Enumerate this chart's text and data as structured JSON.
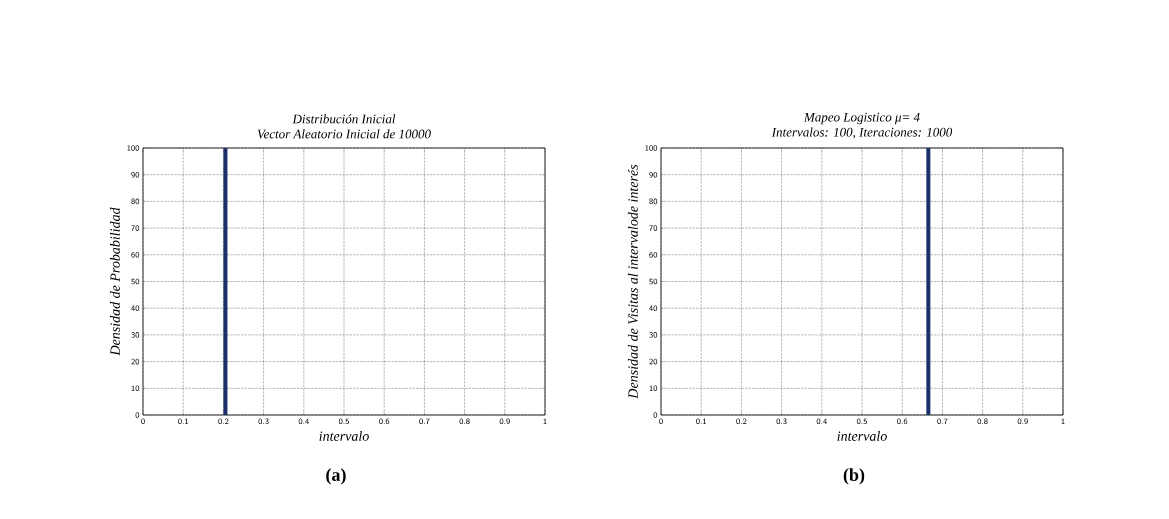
{
  "chart_data": [
    {
      "type": "histogram",
      "title": "Distribución Inicial",
      "subtitle": "Vector Aleatorio Inicial de 10000",
      "xlabel": "intervalo",
      "ylabel": "Densidad de Probabilidad",
      "bins": [
        0.2,
        0.21
      ],
      "values": [
        100
      ],
      "color": "#1b2f6b",
      "xlim": [
        0,
        1
      ],
      "ylim": [
        0,
        100
      ],
      "xticks": [
        0,
        0.1,
        0.2,
        0.3,
        0.4,
        0.5,
        0.6,
        0.7,
        0.8,
        0.9,
        1
      ],
      "yticks": [
        0,
        10,
        20,
        30,
        40,
        50,
        60,
        70,
        80,
        90,
        100
      ],
      "grid": true,
      "annotations": [
        "(a)"
      ]
    },
    {
      "type": "histogram",
      "title": "Mapeo Logistico μ= 4",
      "subtitle": "Intervalos: 100, Iteraciones: 1000",
      "xlabel": "intervalo",
      "ylabel": "Densidad de Visitas al intervalode interés",
      "bins": [
        0.66,
        0.67
      ],
      "values": [
        100
      ],
      "color": "#1b2f6b",
      "xlim": [
        0,
        1
      ],
      "ylim": [
        0,
        100
      ],
      "xticks": [
        0,
        0.1,
        0.2,
        0.3,
        0.4,
        0.5,
        0.6,
        0.7,
        0.8,
        0.9,
        1
      ],
      "yticks": [
        0,
        10,
        20,
        30,
        40,
        50,
        60,
        70,
        80,
        90,
        100
      ],
      "grid": true,
      "annotations": [
        "(b)"
      ]
    }
  ]
}
